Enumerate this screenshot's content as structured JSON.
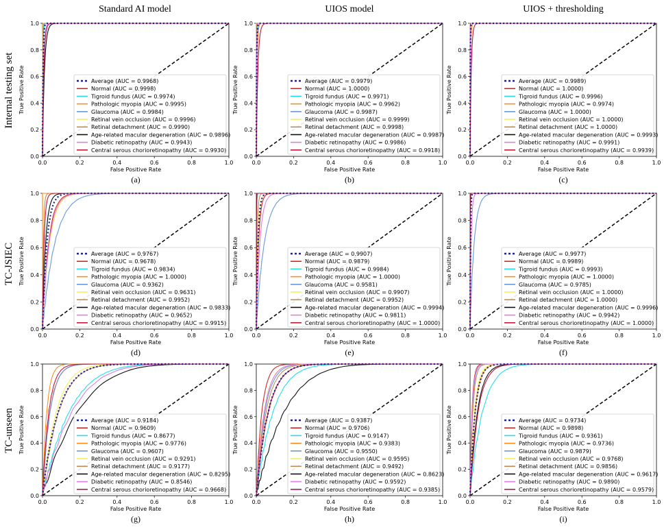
{
  "figure": {
    "column_titles": [
      "Standard AI model",
      "UIOS model",
      "UIOS + thresholding"
    ],
    "row_titles": [
      "Internal testing set",
      "TC-JSIEC",
      "TC-unseen"
    ]
  },
  "colors": {
    "Average": "#1f1f8f",
    "Normal": "#d62728",
    "Tigroid fundus": "#22e0ee",
    "Pathologic myopia": "#ff8c1a",
    "Glaucoma": "#6699dd",
    "Retinal vein occlusion": "#f2f25a",
    "Retinal detachment": "#c98e55",
    "Age-related macular degeneration": "#111111",
    "Diabetic retinopathy": "#e07be0",
    "Central serous chorioretinopathy": "#c0183c"
  },
  "series_names": [
    "Average",
    "Normal",
    "Tigroid fundus",
    "Pathologic myopia",
    "Glaucoma",
    "Retinal vein occlusion",
    "Retinal detachment",
    "Age-related macular degeneration",
    "Diabetic retinopathy",
    "Central serous chorioretinopathy"
  ],
  "chart_data": [
    {
      "panel": "(a)",
      "type": "line",
      "xlabel": "False Positive Rate",
      "ylabel": "True Positive Rate",
      "xlim": [
        0,
        1
      ],
      "ylim": [
        0,
        1
      ],
      "xticks": [
        "0.0",
        "0.2",
        "0.4",
        "0.6",
        "0.8",
        "1.0"
      ],
      "yticks": [
        "0.0",
        "0.2",
        "0.4",
        "0.6",
        "0.8",
        "1.0"
      ],
      "legend_position": "lower right",
      "legend": [
        "Average (AUC = 0.9968)",
        "Normal (AUC = 0.9998)",
        "Tigroid fundus (AUC = 0.9974)",
        "Pathologic myopia (AUC = 0.9995)",
        "Glaucoma (AUC = 0.9984)",
        "Retinal vein occlusion (AUC = 0.9996)",
        "Retinal detachment (AUC = 0.9990)",
        "Age-related macular degeneration (AUC = 0.9896)",
        "Diabetic retinopathy (AUC = 0.9943)",
        "Central serous chorioretinopathy (AUC = 0.9930)"
      ],
      "auc": [
        0.9968,
        0.9998,
        0.9974,
        0.9995,
        0.9984,
        0.9996,
        0.999,
        0.9896,
        0.9943,
        0.993
      ]
    },
    {
      "panel": "(b)",
      "type": "line",
      "xlabel": "False Positive Rate",
      "ylabel": "True Positive Rate",
      "xlim": [
        0,
        1
      ],
      "ylim": [
        0,
        1
      ],
      "xticks": [
        "0.0",
        "0.2",
        "0.4",
        "0.6",
        "0.8",
        "1.0"
      ],
      "yticks": [
        "0.0",
        "0.2",
        "0.4",
        "0.6",
        "0.8",
        "1.0"
      ],
      "legend_position": "lower right",
      "legend": [
        "Average (AUC = 0.9979)",
        "Normal (AUC = 1.0000)",
        "Tigroid fundus (AUC = 0.9971)",
        "Pathologic myopia (AUC = 0.9962)",
        "Glaucoma (AUC = 0.9987)",
        "Retinal vein occlusion (AUC = 0.9999)",
        "Retinal detachment (AUC = 0.9998)",
        "Age-related macular degeneration (AUC = 0.9987)",
        "Diabetic retinopathy (AUC = 0.9986)",
        "Central serous chorioretinopathy (AUC = 0.9918)"
      ],
      "auc": [
        0.9979,
        1.0,
        0.9971,
        0.9962,
        0.9987,
        0.9999,
        0.9998,
        0.9987,
        0.9986,
        0.9918
      ]
    },
    {
      "panel": "(c)",
      "type": "line",
      "xlabel": "False Positive Rate",
      "ylabel": "True Positive Rate",
      "xlim": [
        0,
        1
      ],
      "ylim": [
        0,
        1
      ],
      "xticks": [
        "0.0",
        "0.2",
        "0.4",
        "0.6",
        "0.8",
        "1.0"
      ],
      "yticks": [
        "0.0",
        "0.2",
        "0.4",
        "0.6",
        "0.8",
        "1.0"
      ],
      "legend_position": "lower right",
      "legend": [
        "Average (AUC = 0.9989)",
        "Normal (AUC = 1.0000)",
        "Tigroid fundus (AUC = 0.9996)",
        "Pathologic myopia (AUC = 0.9974)",
        "Glaucoma (AUC = 1.0000)",
        "Retinal vein occlusion (AUC = 1.0000)",
        "Retinal detachment (AUC = 1.0000)",
        "Age-related macular degeneration (AUC = 0.9993)",
        "Diabetic retinopathy (AUC = 0.9991)",
        "Central serous chorioretinopathy (AUC = 0.9939)"
      ],
      "auc": [
        0.9989,
        1.0,
        0.9996,
        0.9974,
        1.0,
        1.0,
        1.0,
        0.9993,
        0.9991,
        0.9939
      ]
    },
    {
      "panel": "(d)",
      "type": "line",
      "xlabel": "False Positive Rate",
      "ylabel": "True Positive Rate",
      "xlim": [
        0,
        1
      ],
      "ylim": [
        0,
        1
      ],
      "xticks": [
        "0.0",
        "0.2",
        "0.4",
        "0.6",
        "0.8",
        "1.0"
      ],
      "yticks": [
        "0.0",
        "0.2",
        "0.4",
        "0.6",
        "0.8",
        "1.0"
      ],
      "legend_position": "lower right",
      "legend": [
        "Average (AUC = 0.9767)",
        "Normal (AUC = 0.9678)",
        "Tigroid fundus (AUC = 0.9834)",
        "Pathologic myopia (AUC = 1.0000)",
        "Glaucoma (AUC = 0.9362)",
        "Retinal vein occlusion (AUC = 0.9631)",
        "Retinal detachment (AUC = 0.9952)",
        "Age-related macular degeneration (AUC = 0.9833)",
        "Diabetic retinopathy (AUC = 0.9652)",
        "Central serous chorioretinopathy (AUC = 0.9915)"
      ],
      "auc": [
        0.9767,
        0.9678,
        0.9834,
        1.0,
        0.9362,
        0.9631,
        0.9952,
        0.9833,
        0.9652,
        0.9915
      ]
    },
    {
      "panel": "(e)",
      "type": "line",
      "xlabel": "False Positive Rate",
      "ylabel": "True Positive Rate",
      "xlim": [
        0,
        1
      ],
      "ylim": [
        0,
        1
      ],
      "xticks": [
        "0.0",
        "0.2",
        "0.4",
        "0.6",
        "0.8",
        "1.0"
      ],
      "yticks": [
        "0.0",
        "0.2",
        "0.4",
        "0.6",
        "0.8",
        "1.0"
      ],
      "legend_position": "lower right",
      "legend": [
        "Average (AUC = 0.9907)",
        "Normal (AUC = 0.9879)",
        "Tigroid fundus (AUC = 0.9984)",
        "Pathologic myopia (AUC = 1.0000)",
        "Glaucoma (AUC = 0.9581)",
        "Retinal vein occlusion (AUC = 0.9907)",
        "Retinal detachment (AUC = 0.9952)",
        "Age-related macular degeneration (AUC = 0.9994)",
        "Diabetic retinopathy (AUC = 0.9811)",
        "Central serous chorioretinopathy (AUC = 1.0000)"
      ],
      "auc": [
        0.9907,
        0.9879,
        0.9984,
        1.0,
        0.9581,
        0.9907,
        0.9952,
        0.9994,
        0.9811,
        1.0
      ]
    },
    {
      "panel": "(f)",
      "type": "line",
      "xlabel": "False Positive Rate",
      "ylabel": "True Positive Rate",
      "xlim": [
        0,
        1
      ],
      "ylim": [
        0,
        1
      ],
      "xticks": [
        "0.0",
        "0.2",
        "0.4",
        "0.6",
        "0.8",
        "1.0"
      ],
      "yticks": [
        "0.0",
        "0.2",
        "0.4",
        "0.6",
        "0.8",
        "1.0"
      ],
      "legend_position": "lower right",
      "legend": [
        "Average (AUC = 0.9977)",
        "Normal (AUC = 0.9989)",
        "Tigroid fundus (AUC = 0.9993)",
        "Pathologic myopia (AUC = 1.0000)",
        "Glaucoma (AUC = 0.9785)",
        "Retinal vein occlusion (AUC = 1.0000)",
        "Retinal detachment (AUC = 1.0000)",
        "Age-related macular degeneration (AUC = 0.9996)",
        "Diabetic retinopathy (AUC = 0.9942)",
        "Central serous chorioretinopathy (AUC = 1.0000)"
      ],
      "auc": [
        0.9977,
        0.9989,
        0.9993,
        1.0,
        0.9785,
        1.0,
        1.0,
        0.9996,
        0.9942,
        1.0
      ]
    },
    {
      "panel": "(g)",
      "type": "line",
      "xlabel": "False Positive Rate",
      "ylabel": "True Positive Rate",
      "xlim": [
        0,
        1
      ],
      "ylim": [
        0,
        1
      ],
      "xticks": [
        "0.0",
        "0.2",
        "0.4",
        "0.6",
        "0.8",
        "1.0"
      ],
      "yticks": [
        "0.0",
        "0.2",
        "0.4",
        "0.6",
        "0.8",
        "1.0"
      ],
      "legend_position": "lower right",
      "legend": [
        "Average (AUC = 0.9184)",
        "Normal (AUC = 0.9609)",
        "Tigroid fundus (AUC = 0.8677)",
        "Pathologic myopia (AUC = 0.9776)",
        "Glaucoma (AUC = 0.9607)",
        "Retinal vein occlusion (AUC = 0.9291)",
        "Retinal detachment (AUC = 0.9177)",
        "Age-related macular degeneration (AUC = 0.8295)",
        "Diabetic retinopathy (AUC = 0.8546)",
        "Central serous chorioretinopathy (AUC = 0.9668)"
      ],
      "auc": [
        0.9184,
        0.9609,
        0.8677,
        0.9776,
        0.9607,
        0.9291,
        0.9177,
        0.8295,
        0.8546,
        0.9668
      ]
    },
    {
      "panel": "(h)",
      "type": "line",
      "xlabel": "False Positive Rate",
      "ylabel": "True Positive Rate",
      "xlim": [
        0,
        1
      ],
      "ylim": [
        0,
        1
      ],
      "xticks": [
        "0.0",
        "0.2",
        "0.4",
        "0.6",
        "0.8",
        "1.0"
      ],
      "yticks": [
        "0.0",
        "0.2",
        "0.4",
        "0.6",
        "0.8",
        "1.0"
      ],
      "legend_position": "lower right",
      "legend": [
        "Average (AUC = 0.9387)",
        "Normal (AUC = 0.9706)",
        "Tigroid fundus (AUC = 0.9147)",
        "Pathologic myopia (AUC = 0.9383)",
        "Glaucoma (AUC = 0.9550)",
        "Retinal vein occlusion (AUC = 0.9595)",
        "Retinal detachment (AUC = 0.9492)",
        "Age-related macular degeneration (AUC = 0.8623)",
        "Diabetic retinopathy (AUC = 0.9592)",
        "Central serous chorioretinopathy (AUC = 0.9385)"
      ],
      "auc": [
        0.9387,
        0.9706,
        0.9147,
        0.9383,
        0.955,
        0.9595,
        0.9492,
        0.8623,
        0.9592,
        0.9385
      ]
    },
    {
      "panel": "(i)",
      "type": "line",
      "xlabel": "False Positive Rate",
      "ylabel": "True Positive Rate",
      "xlim": [
        0,
        1
      ],
      "ylim": [
        0,
        1
      ],
      "xticks": [
        "0.0",
        "0.2",
        "0.4",
        "0.6",
        "0.8",
        "1.0"
      ],
      "yticks": [
        "0.0",
        "0.2",
        "0.4",
        "0.6",
        "0.8",
        "1.0"
      ],
      "legend_position": "lower right",
      "legend": [
        "Average (AUC = 0.9734)",
        "Normal (AUC = 0.9898)",
        "Tigroid fundus (AUC = 0.9361)",
        "Pathologic myopia (AUC = 0.9736)",
        "Glaucoma (AUC = 0.9879)",
        "Retinal vein occlusion (AUC = 0.9768)",
        "Retinal detachment (AUC = 0.9856)",
        "Age-related macular degeneration (AUC = 0.9617)",
        "Diabetic retinopathy (AUC = 0.9890)",
        "Central serous chorioretinopathy (AUC = 0.9579)"
      ],
      "auc": [
        0.9734,
        0.9898,
        0.9361,
        0.9736,
        0.9879,
        0.9768,
        0.9856,
        0.9617,
        0.989,
        0.9579
      ]
    }
  ]
}
